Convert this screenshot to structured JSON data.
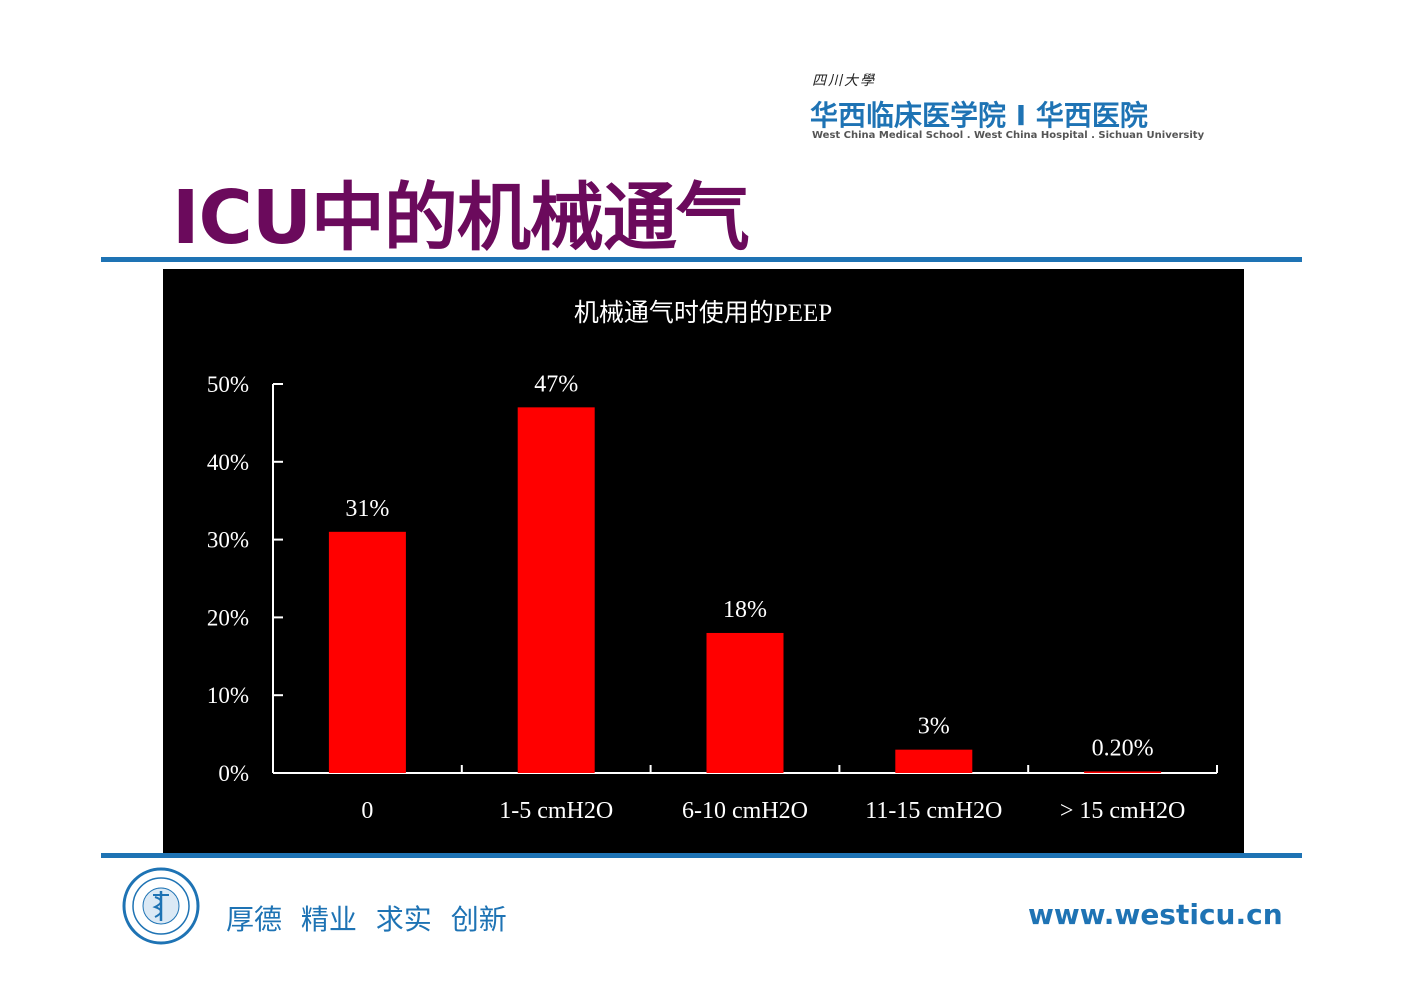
{
  "header": {
    "logo_small": "四川大學",
    "logo_main": "华西临床医学院 I 华西医院",
    "logo_sub": "West China Medical School . West China Hospital . Sichuan University"
  },
  "page": {
    "title": "ICU中的机械通气"
  },
  "footer": {
    "motto": "厚德 精业 求实 创新",
    "website": "www.westicu.cn"
  },
  "colors": {
    "title": "#6b0a5c",
    "brand_blue": "#1e73b4",
    "bar": "#ff0000",
    "chart_bg": "#000000"
  },
  "chart_data": {
    "type": "bar",
    "title": "机械通气时使用的PEEP",
    "xlabel": "",
    "ylabel": "",
    "categories": [
      "0",
      "1-5 cmH2O",
      "6-10 cmH2O",
      "11-15 cmH2O",
      "> 15 cmH2O"
    ],
    "values": [
      31,
      47,
      18,
      3,
      0.2
    ],
    "data_labels": [
      "31%",
      "47%",
      "18%",
      "3%",
      "0.20%"
    ],
    "yticks": [
      "0%",
      "10%",
      "20%",
      "30%",
      "40%",
      "50%"
    ],
    "ylim": [
      0,
      50
    ],
    "grid": false,
    "legend": "none"
  }
}
